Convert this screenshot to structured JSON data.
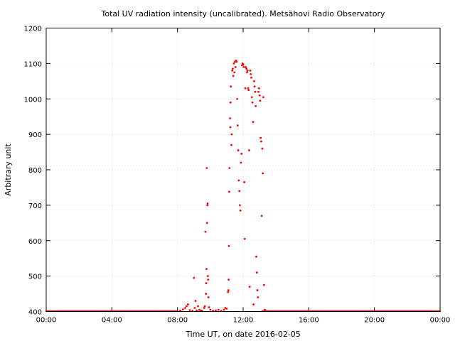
{
  "chart_data": {
    "type": "scatter",
    "title": "Total UV radiation intensity (uncalibrated). Metsähovi Radio Observatory",
    "xlabel": "Time UT, on date 2016-02-05",
    "ylabel": "Arbitrary unit",
    "xlim": [
      "00:00",
      "24:00"
    ],
    "ylim": [
      400,
      1200
    ],
    "x_ticks": [
      "00:00",
      "04:00",
      "08:00",
      "12:00",
      "16:00",
      "20:00",
      "00:00"
    ],
    "y_ticks": [
      "400",
      "500",
      "600",
      "700",
      "800",
      "900",
      "1000",
      "1100",
      "1200"
    ],
    "grid": true,
    "marker_color": "#ff0000",
    "baseline_value": 400,
    "baseline_ranges": [
      [
        "00:00",
        "08:00"
      ],
      [
        "13:10",
        "24:00"
      ]
    ],
    "points": [
      [
        "08:10",
        403
      ],
      [
        "08:20",
        406
      ],
      [
        "08:28",
        410
      ],
      [
        "08:33",
        415
      ],
      [
        "08:38",
        420
      ],
      [
        "08:45",
        404
      ],
      [
        "08:55",
        402
      ],
      [
        "09:00",
        495
      ],
      [
        "09:03",
        410
      ],
      [
        "09:06",
        430
      ],
      [
        "09:10",
        403
      ],
      [
        "09:15",
        415
      ],
      [
        "09:20",
        405
      ],
      [
        "09:25",
        403
      ],
      [
        "09:30",
        402
      ],
      [
        "09:38",
        410
      ],
      [
        "09:40",
        415
      ],
      [
        "09:42",
        625
      ],
      [
        "09:44",
        450
      ],
      [
        "09:45",
        480
      ],
      [
        "09:46",
        520
      ],
      [
        "09:47",
        805
      ],
      [
        "09:48",
        650
      ],
      [
        "09:49",
        700
      ],
      [
        "09:50",
        705
      ],
      [
        "09:51",
        500
      ],
      [
        "09:52",
        490
      ],
      [
        "09:53",
        440
      ],
      [
        "09:55",
        412
      ],
      [
        "10:00",
        405
      ],
      [
        "10:10",
        402
      ],
      [
        "10:20",
        403
      ],
      [
        "10:30",
        405
      ],
      [
        "10:40",
        402
      ],
      [
        "10:50",
        405
      ],
      [
        "10:55",
        410
      ],
      [
        "11:00",
        408
      ],
      [
        "11:05",
        455
      ],
      [
        "11:06",
        460
      ],
      [
        "11:07",
        490
      ],
      [
        "11:08",
        585
      ],
      [
        "11:09",
        738
      ],
      [
        "11:10",
        805
      ],
      [
        "11:12",
        945
      ],
      [
        "11:13",
        920
      ],
      [
        "11:14",
        990
      ],
      [
        "11:15",
        1035
      ],
      [
        "11:17",
        870
      ],
      [
        "11:18",
        900
      ],
      [
        "11:20",
        1080
      ],
      [
        "11:22",
        1085
      ],
      [
        "11:24",
        1065
      ],
      [
        "11:26",
        1100
      ],
      [
        "11:28",
        1075
      ],
      [
        "11:30",
        1105
      ],
      [
        "11:32",
        1090
      ],
      [
        "11:34",
        1108
      ],
      [
        "11:36",
        1105
      ],
      [
        "11:38",
        1000
      ],
      [
        "11:40",
        925
      ],
      [
        "11:42",
        855
      ],
      [
        "11:44",
        770
      ],
      [
        "11:46",
        740
      ],
      [
        "11:48",
        700
      ],
      [
        "11:50",
        685
      ],
      [
        "11:52",
        820
      ],
      [
        "11:54",
        845
      ],
      [
        "11:56",
        1095
      ],
      [
        "11:58",
        1100
      ],
      [
        "12:00",
        1097
      ],
      [
        "12:02",
        1090
      ],
      [
        "12:04",
        765
      ],
      [
        "12:06",
        605
      ],
      [
        "12:08",
        1030
      ],
      [
        "12:10",
        1090
      ],
      [
        "12:12",
        1085
      ],
      [
        "12:14",
        1075
      ],
      [
        "12:16",
        1080
      ],
      [
        "12:18",
        1030
      ],
      [
        "12:20",
        1025
      ],
      [
        "12:22",
        855
      ],
      [
        "12:24",
        470
      ],
      [
        "12:26",
        1080
      ],
      [
        "12:28",
        1070
      ],
      [
        "12:30",
        1060
      ],
      [
        "12:32",
        1005
      ],
      [
        "12:34",
        990
      ],
      [
        "12:36",
        935
      ],
      [
        "12:38",
        420
      ],
      [
        "12:40",
        1050
      ],
      [
        "12:42",
        1035
      ],
      [
        "12:44",
        1020
      ],
      [
        "12:46",
        980
      ],
      [
        "12:48",
        555
      ],
      [
        "12:50",
        510
      ],
      [
        "12:52",
        460
      ],
      [
        "12:54",
        440
      ],
      [
        "12:56",
        1020
      ],
      [
        "12:58",
        1030
      ],
      [
        "13:00",
        1010
      ],
      [
        "13:02",
        995
      ],
      [
        "13:04",
        890
      ],
      [
        "13:06",
        880
      ],
      [
        "13:08",
        670
      ],
      [
        "13:10",
        860
      ],
      [
        "13:12",
        790
      ],
      [
        "13:14",
        1005
      ],
      [
        "13:16",
        475
      ],
      [
        "13:18",
        402
      ],
      [
        "13:20",
        405
      ]
    ]
  }
}
